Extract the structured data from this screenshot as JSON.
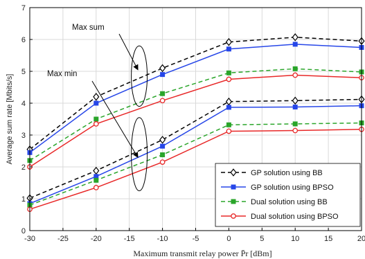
{
  "chart_data": {
    "type": "line",
    "xlabel": "Maximum transmit relay power P̄r [dBm]",
    "ylabel": "Average sum rate [Mbits/s]",
    "xlim": [
      -30,
      20
    ],
    "ylim": [
      0,
      7
    ],
    "xticks": [
      -30,
      -25,
      -20,
      -15,
      -10,
      -5,
      0,
      5,
      10,
      15,
      20
    ],
    "yticks": [
      0,
      1,
      2,
      3,
      4,
      5,
      6,
      7
    ],
    "grid": true,
    "legend_position": "bottom-right",
    "x": [
      -30,
      -20,
      -10,
      0,
      10,
      20
    ],
    "series": [
      {
        "name": "GP solution using BB",
        "group": "Max sum",
        "color": "#000000",
        "dash": true,
        "marker": "diamond",
        "values": [
          2.55,
          4.2,
          5.1,
          5.92,
          6.07,
          5.95
        ]
      },
      {
        "name": "GP solution using BPSO",
        "group": "Max sum",
        "color": "#2646e8",
        "dash": false,
        "marker": "square",
        "values": [
          2.45,
          4.0,
          4.9,
          5.7,
          5.85,
          5.75
        ]
      },
      {
        "name": "Dual solution using BB",
        "group": "Max sum",
        "color": "#2aa52a",
        "dash": true,
        "marker": "square",
        "values": [
          2.2,
          3.5,
          4.3,
          4.95,
          5.08,
          4.98
        ]
      },
      {
        "name": "Dual solution using BPSO",
        "group": "Max sum",
        "color": "#e82828",
        "dash": false,
        "marker": "circle",
        "values": [
          2.0,
          3.35,
          4.08,
          4.75,
          4.88,
          4.8
        ]
      },
      {
        "name": "GP solution using BB",
        "group": "Max min",
        "color": "#000000",
        "dash": true,
        "marker": "diamond",
        "values": [
          1.02,
          1.88,
          2.85,
          4.05,
          4.08,
          4.12
        ]
      },
      {
        "name": "GP solution using BPSO",
        "group": "Max min",
        "color": "#2646e8",
        "dash": false,
        "marker": "square",
        "values": [
          0.85,
          1.7,
          2.65,
          3.87,
          3.88,
          3.92
        ]
      },
      {
        "name": "Dual solution using BB",
        "group": "Max min",
        "color": "#2aa52a",
        "dash": true,
        "marker": "square",
        "values": [
          0.8,
          1.58,
          2.38,
          3.32,
          3.35,
          3.38
        ]
      },
      {
        "name": "Dual solution using BPSO",
        "group": "Max min",
        "color": "#e82828",
        "dash": false,
        "marker": "circle",
        "values": [
          0.67,
          1.35,
          2.15,
          3.12,
          3.14,
          3.18
        ]
      }
    ],
    "legend": [
      {
        "label": "GP solution using BB",
        "color": "#000000",
        "dash": true,
        "marker": "diamond"
      },
      {
        "label": "GP solution using BPSO",
        "color": "#2646e8",
        "dash": false,
        "marker": "square"
      },
      {
        "label": "Dual solution using BB",
        "color": "#2aa52a",
        "dash": true,
        "marker": "square"
      },
      {
        "label": "Dual solution using BPSO",
        "color": "#e82828",
        "dash": false,
        "marker": "circle"
      }
    ],
    "annotations": [
      {
        "text": "Max sum",
        "ellipse_center": [
          -13.5,
          4.85
        ],
        "ellipse_radius": [
          1.2,
          0.95
        ],
        "arrow_tip": [
          -13.5,
          5.05
        ]
      },
      {
        "text": "Max min",
        "ellipse_center": [
          -13.5,
          2.4
        ],
        "ellipse_radius": [
          1.2,
          1.15
        ],
        "arrow_tip": [
          -13.5,
          2.3
        ]
      }
    ]
  }
}
